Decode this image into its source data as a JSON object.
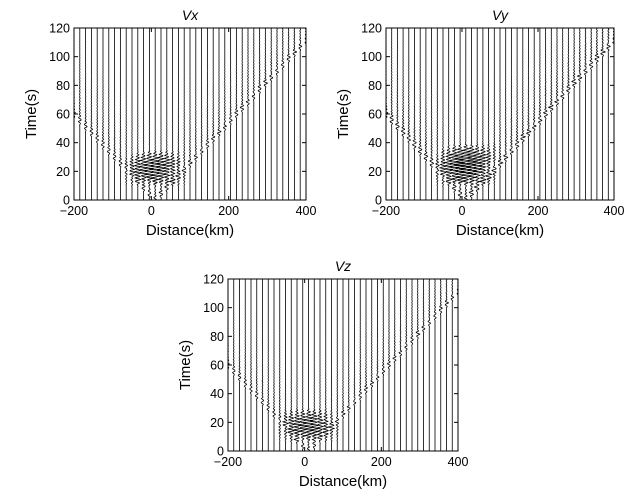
{
  "chart_data": [
    {
      "type": "line",
      "chart_kind": "seismic record section (wiggle traces)",
      "title": "Vx",
      "xlabel": "Distance(km)",
      "ylabel": "Time(s)",
      "xlim": [
        -200,
        400
      ],
      "ylim": [
        0,
        120
      ],
      "xticks": [
        -200,
        0,
        200,
        400
      ],
      "yticks": [
        0,
        20,
        40,
        60,
        80,
        100,
        120
      ],
      "x_tick_labels": [
        "−200",
        "0",
        "200",
        "400"
      ],
      "y_tick_labels": [
        "0",
        "20",
        "40",
        "60",
        "80",
        "100",
        "120"
      ],
      "grid": false,
      "trace_offsets_km": {
        "start": -200,
        "end": 400,
        "step": 15
      },
      "source_position_km": 10,
      "strong_motion_time_window_s": [
        8,
        35
      ],
      "wavefront_apparent_velocity_km_per_s": 3.5,
      "amplitude": 1.0
    },
    {
      "type": "line",
      "chart_kind": "seismic record section (wiggle traces)",
      "title": "Vy",
      "xlabel": "Distance(km)",
      "ylabel": "Time(s)",
      "xlim": [
        -200,
        400
      ],
      "ylim": [
        0,
        120
      ],
      "xticks": [
        -200,
        0,
        200,
        400
      ],
      "yticks": [
        0,
        20,
        40,
        60,
        80,
        100,
        120
      ],
      "x_tick_labels": [
        "−200",
        "0",
        "200",
        "400"
      ],
      "y_tick_labels": [
        "0",
        "20",
        "40",
        "60",
        "80",
        "100",
        "120"
      ],
      "grid": false,
      "trace_offsets_km": {
        "start": -200,
        "end": 400,
        "step": 15
      },
      "source_position_km": 10,
      "strong_motion_time_window_s": [
        8,
        40
      ],
      "wavefront_apparent_velocity_km_per_s": 3.5,
      "amplitude": 1.25
    },
    {
      "type": "line",
      "chart_kind": "seismic record section (wiggle traces)",
      "title": "Vz",
      "xlabel": "Distance(km)",
      "ylabel": "Time(s)",
      "xlim": [
        -200,
        400
      ],
      "ylim": [
        0,
        120
      ],
      "xticks": [
        -200,
        0,
        200,
        400
      ],
      "yticks": [
        0,
        20,
        40,
        60,
        80,
        100,
        120
      ],
      "x_tick_labels": [
        "−200",
        "0",
        "200",
        "400"
      ],
      "y_tick_labels": [
        "0",
        "20",
        "40",
        "60",
        "80",
        "100",
        "120"
      ],
      "grid": false,
      "trace_offsets_km": {
        "start": -200,
        "end": 400,
        "step": 15
      },
      "source_position_km": 10,
      "strong_motion_time_window_s": [
        5,
        30
      ],
      "wavefront_apparent_velocity_km_per_s": 3.5,
      "amplitude": 0.9
    }
  ]
}
